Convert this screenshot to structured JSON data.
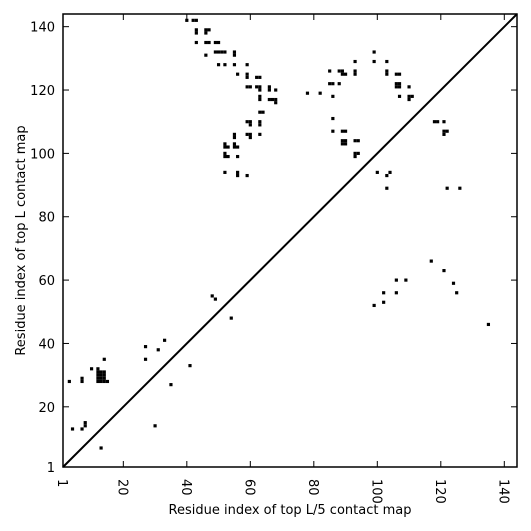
{
  "chart_data": {
    "type": "scatter",
    "title": "",
    "xlabel": "Residue index of top L/5 contact map",
    "ylabel": "Residue index of top L contact map",
    "xlim": [
      1,
      144
    ],
    "ylim": [
      1,
      144
    ],
    "xticks": [
      1,
      20,
      40,
      60,
      80,
      100,
      120,
      140
    ],
    "yticks": [
      1,
      20,
      40,
      60,
      80,
      100,
      120,
      140
    ],
    "x_tick_labels": [
      "1",
      "20",
      "40",
      "60",
      "80",
      "100",
      "120",
      "140"
    ],
    "y_tick_labels": [
      "1",
      "20",
      "40",
      "60",
      "80",
      "100",
      "120",
      "140"
    ],
    "x_tick_label_rotation": "vertical",
    "diagonal_line": true,
    "grid": false,
    "marker": "square",
    "marker_color": "#000000",
    "series": [
      {
        "points": [
          [
            3,
            28
          ],
          [
            7,
            28
          ],
          [
            7,
            29
          ],
          [
            10,
            32
          ],
          [
            12,
            32
          ],
          [
            12,
            31
          ],
          [
            12,
            30
          ],
          [
            12,
            29
          ],
          [
            12,
            28
          ],
          [
            13,
            31
          ],
          [
            13,
            30
          ],
          [
            13,
            29
          ],
          [
            13,
            28
          ],
          [
            14,
            31
          ],
          [
            14,
            30
          ],
          [
            14,
            29
          ],
          [
            14,
            28
          ],
          [
            14,
            35
          ],
          [
            15,
            28
          ],
          [
            4,
            13
          ],
          [
            7,
            13
          ],
          [
            8,
            14
          ],
          [
            8,
            15
          ],
          [
            13,
            7
          ],
          [
            27,
            39
          ],
          [
            27,
            35
          ],
          [
            31,
            38
          ],
          [
            33,
            41
          ],
          [
            35,
            27
          ],
          [
            30,
            14
          ],
          [
            41,
            33
          ],
          [
            49,
            54
          ],
          [
            48,
            55
          ],
          [
            54,
            48
          ]
        ]
      },
      {
        "points": [
          [
            40,
            142
          ],
          [
            42,
            142
          ],
          [
            43,
            142
          ],
          [
            43,
            139
          ],
          [
            43,
            138
          ],
          [
            46,
            139
          ],
          [
            47,
            139
          ],
          [
            46,
            138
          ],
          [
            43,
            135
          ],
          [
            46,
            135
          ],
          [
            47,
            135
          ],
          [
            49,
            135
          ],
          [
            50,
            135
          ],
          [
            46,
            131
          ],
          [
            49,
            132
          ],
          [
            50,
            132
          ],
          [
            51,
            132
          ],
          [
            52,
            132
          ],
          [
            55,
            132
          ],
          [
            55,
            131
          ],
          [
            50,
            128
          ],
          [
            52,
            128
          ],
          [
            55,
            128
          ],
          [
            59,
            128
          ],
          [
            56,
            125
          ],
          [
            59,
            125
          ],
          [
            59,
            124
          ],
          [
            62,
            124
          ],
          [
            63,
            124
          ],
          [
            62,
            121
          ],
          [
            59,
            121
          ],
          [
            60,
            121
          ],
          [
            63,
            121
          ],
          [
            63,
            120
          ],
          [
            66,
            121
          ],
          [
            66,
            120
          ],
          [
            68,
            120
          ],
          [
            63,
            118
          ],
          [
            63,
            117
          ],
          [
            66,
            117
          ],
          [
            67,
            117
          ],
          [
            68,
            117
          ],
          [
            68,
            116
          ],
          [
            63,
            113
          ],
          [
            64,
            113
          ],
          [
            59,
            110
          ],
          [
            60,
            110
          ],
          [
            60,
            109
          ],
          [
            63,
            110
          ],
          [
            63,
            109
          ],
          [
            55,
            106
          ],
          [
            55,
            105
          ],
          [
            59,
            106
          ],
          [
            60,
            106
          ],
          [
            60,
            105
          ],
          [
            63,
            106
          ],
          [
            52,
            103
          ],
          [
            55,
            103
          ],
          [
            52,
            102
          ],
          [
            53,
            102
          ],
          [
            55,
            102
          ],
          [
            56,
            102
          ],
          [
            52,
            100
          ],
          [
            52,
            99
          ],
          [
            53,
            99
          ],
          [
            56,
            99
          ],
          [
            52,
            94
          ],
          [
            56,
            94
          ],
          [
            56,
            93
          ],
          [
            59,
            93
          ]
        ]
      },
      {
        "points": [
          [
            78,
            119
          ],
          [
            82,
            119
          ],
          [
            85,
            126
          ],
          [
            85,
            122
          ],
          [
            86,
            122
          ],
          [
            86,
            118
          ],
          [
            88,
            126
          ],
          [
            89,
            126
          ],
          [
            89,
            125
          ],
          [
            90,
            125
          ],
          [
            88,
            122
          ],
          [
            93,
            129
          ],
          [
            93,
            126
          ],
          [
            93,
            125
          ],
          [
            99,
            132
          ],
          [
            99,
            129
          ],
          [
            103,
            129
          ],
          [
            103,
            126
          ],
          [
            103,
            125
          ],
          [
            106,
            125
          ],
          [
            107,
            125
          ],
          [
            106,
            122
          ],
          [
            106,
            121
          ],
          [
            107,
            122
          ],
          [
            107,
            121
          ],
          [
            110,
            121
          ],
          [
            107,
            118
          ],
          [
            110,
            118
          ],
          [
            110,
            117
          ],
          [
            111,
            118
          ],
          [
            86,
            111
          ],
          [
            86,
            107
          ],
          [
            89,
            107
          ],
          [
            90,
            107
          ],
          [
            89,
            104
          ],
          [
            89,
            103
          ],
          [
            90,
            104
          ],
          [
            90,
            103
          ],
          [
            93,
            104
          ],
          [
            94,
            104
          ],
          [
            93,
            100
          ],
          [
            93,
            99
          ],
          [
            94,
            100
          ]
        ]
      },
      {
        "points": [
          [
            100,
            94
          ],
          [
            103,
            93
          ],
          [
            104,
            94
          ],
          [
            103,
            89
          ],
          [
            118,
            110
          ],
          [
            119,
            110
          ],
          [
            121,
            110
          ],
          [
            121,
            107
          ],
          [
            121,
            106
          ],
          [
            122,
            107
          ],
          [
            122,
            89
          ],
          [
            126,
            89
          ],
          [
            99,
            52
          ],
          [
            102,
            53
          ],
          [
            102,
            56
          ],
          [
            106,
            56
          ],
          [
            106,
            60
          ],
          [
            109,
            60
          ],
          [
            117,
            66
          ],
          [
            121,
            63
          ],
          [
            124,
            59
          ],
          [
            125,
            56
          ],
          [
            135,
            46
          ]
        ]
      }
    ]
  }
}
